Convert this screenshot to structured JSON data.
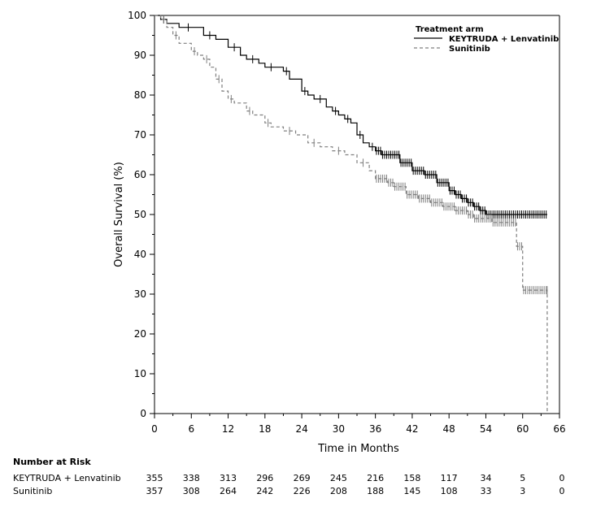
{
  "chart_data": {
    "type": "line",
    "subtype": "kaplan-meier",
    "xlabel": "Time in Months",
    "ylabel": "Overall Survival (%)",
    "xlim": [
      0,
      66
    ],
    "ylim": [
      0,
      100
    ],
    "x_ticks": [
      0,
      6,
      12,
      18,
      24,
      30,
      36,
      42,
      48,
      54,
      60,
      66
    ],
    "y_ticks": [
      0,
      10,
      20,
      30,
      40,
      50,
      60,
      70,
      80,
      90,
      100
    ],
    "legend": {
      "title": "Treatment arm",
      "position": "top-right",
      "entries": [
        "KEYTRUDA + Lenvatinib",
        "Sunitinib"
      ]
    },
    "series": [
      {
        "name": "KEYTRUDA + Lenvatinib",
        "style": "solid",
        "color": "#000000",
        "points": [
          [
            0,
            100
          ],
          [
            1,
            99
          ],
          [
            2,
            98
          ],
          [
            4,
            97
          ],
          [
            7,
            97
          ],
          [
            8,
            95
          ],
          [
            10,
            94
          ],
          [
            12,
            92
          ],
          [
            14,
            90
          ],
          [
            15,
            89
          ],
          [
            17,
            88
          ],
          [
            18,
            87
          ],
          [
            20,
            87
          ],
          [
            21,
            86
          ],
          [
            22,
            84
          ],
          [
            24,
            81
          ],
          [
            25,
            80
          ],
          [
            26,
            79
          ],
          [
            28,
            77
          ],
          [
            29,
            76
          ],
          [
            30,
            75
          ],
          [
            31,
            74
          ],
          [
            32,
            73
          ],
          [
            33,
            70
          ],
          [
            34,
            68
          ],
          [
            35,
            67
          ],
          [
            36,
            66
          ],
          [
            37,
            65
          ],
          [
            40,
            63
          ],
          [
            42,
            61
          ],
          [
            44,
            60
          ],
          [
            46,
            58
          ],
          [
            48,
            56
          ],
          [
            49,
            55
          ],
          [
            50,
            54
          ],
          [
            51,
            53
          ],
          [
            52,
            52
          ],
          [
            53,
            51
          ],
          [
            54,
            50
          ],
          [
            64,
            50
          ]
        ]
      },
      {
        "name": "Sunitinib",
        "style": "dashed",
        "color": "#7f7f7f",
        "points": [
          [
            0,
            100
          ],
          [
            1,
            99
          ],
          [
            2,
            97
          ],
          [
            3,
            95
          ],
          [
            4,
            93
          ],
          [
            6,
            91
          ],
          [
            7,
            90
          ],
          [
            8,
            89
          ],
          [
            9,
            87
          ],
          [
            10,
            84
          ],
          [
            11,
            81
          ],
          [
            12,
            79
          ],
          [
            13,
            78
          ],
          [
            15,
            76
          ],
          [
            16,
            75
          ],
          [
            18,
            73
          ],
          [
            19,
            72
          ],
          [
            21,
            71
          ],
          [
            23,
            70
          ],
          [
            25,
            68
          ],
          [
            27,
            67
          ],
          [
            29,
            66
          ],
          [
            31,
            65
          ],
          [
            33,
            63
          ],
          [
            35,
            61
          ],
          [
            36,
            59
          ],
          [
            38,
            58
          ],
          [
            39,
            57
          ],
          [
            41,
            55
          ],
          [
            43,
            54
          ],
          [
            45,
            53
          ],
          [
            47,
            52
          ],
          [
            49,
            51
          ],
          [
            51,
            50
          ],
          [
            52,
            49
          ],
          [
            55,
            48
          ],
          [
            58,
            48
          ],
          [
            59,
            42
          ],
          [
            60,
            31
          ],
          [
            64,
            31
          ],
          [
            64,
            0
          ]
        ]
      }
    ]
  },
  "risk_table": {
    "title": "Number at Risk",
    "times": [
      0,
      6,
      12,
      18,
      24,
      30,
      36,
      42,
      48,
      54,
      60,
      66
    ],
    "rows": [
      {
        "label": "KEYTRUDA + Lenvatinib",
        "values": [
          355,
          338,
          313,
          296,
          269,
          245,
          216,
          158,
          117,
          34,
          5,
          0
        ]
      },
      {
        "label": "Sunitinib",
        "values": [
          357,
          308,
          264,
          242,
          226,
          208,
          188,
          145,
          108,
          33,
          3,
          0
        ]
      }
    ]
  }
}
